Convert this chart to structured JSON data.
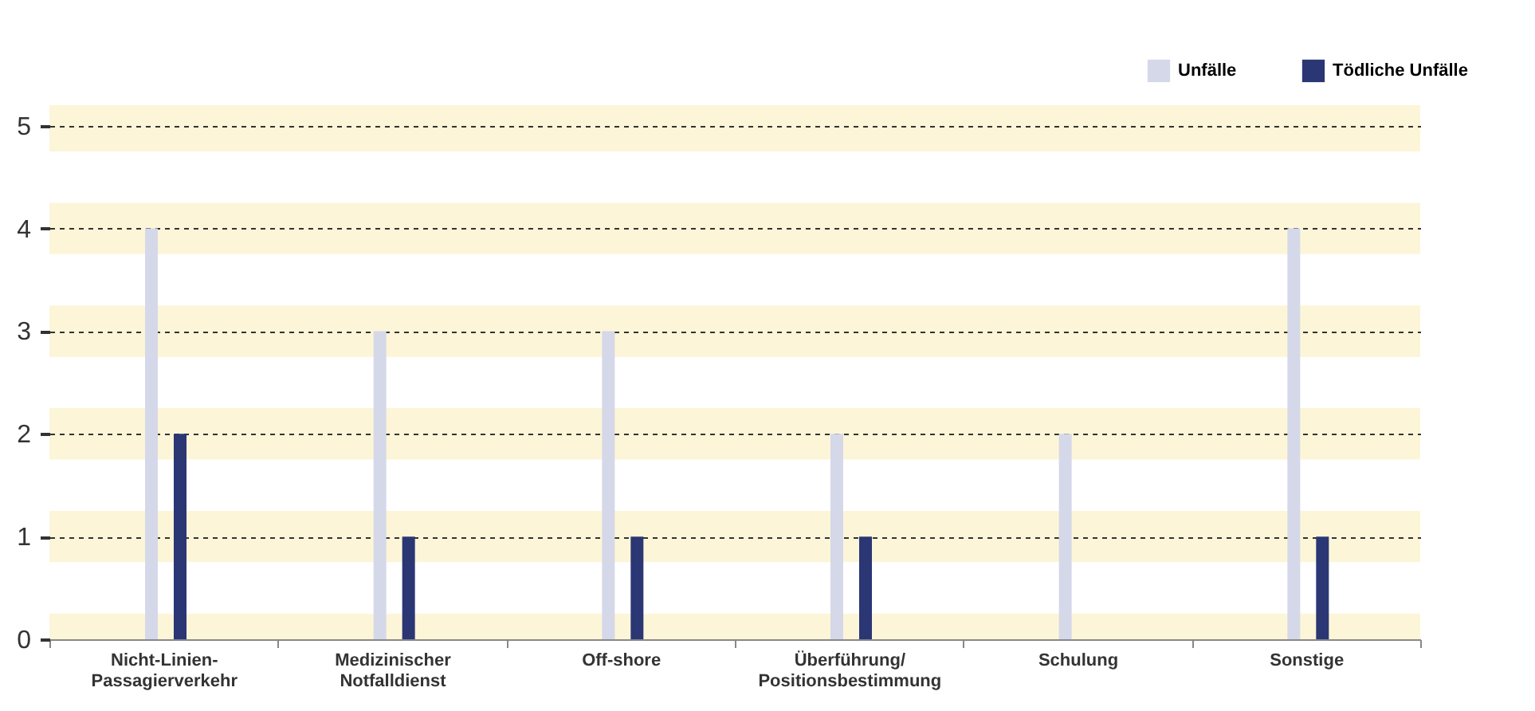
{
  "chart_data": {
    "type": "bar",
    "categories": [
      "Nicht-Linien-\nPassagierverkehr",
      "Medizinischer\nNotfalldienst",
      "Off-shore",
      "Überführung/\nPositionsbestimmung",
      "Schulung",
      "Sonstige"
    ],
    "series": [
      {
        "name": "Unfälle",
        "color": "#d5d8e8",
        "values": [
          4,
          3,
          3,
          2,
          2,
          4
        ]
      },
      {
        "name": "Tödliche Unfälle",
        "color": "#2b3674",
        "values": [
          2,
          1,
          1,
          1,
          0,
          1
        ]
      }
    ],
    "ylim": [
      0,
      5.2
    ],
    "yticks": [
      0,
      1,
      2,
      3,
      4,
      5
    ],
    "grid": "y",
    "legend": "top right",
    "bands": [
      {
        "axis": "y",
        "from": 0.25,
        "to": 0.75,
        "color": "#ffffff"
      },
      {
        "axis": "y",
        "from": 1.25,
        "to": 1.75,
        "color": "#ffffff"
      },
      {
        "axis": "y",
        "from": 2.25,
        "to": 2.75,
        "color": "#ffffff"
      },
      {
        "axis": "y",
        "from": 3.25,
        "to": 3.75,
        "color": "#ffffff"
      },
      {
        "axis": "y",
        "from": 4.25,
        "to": 4.75,
        "color": "#ffffff"
      }
    ]
  }
}
